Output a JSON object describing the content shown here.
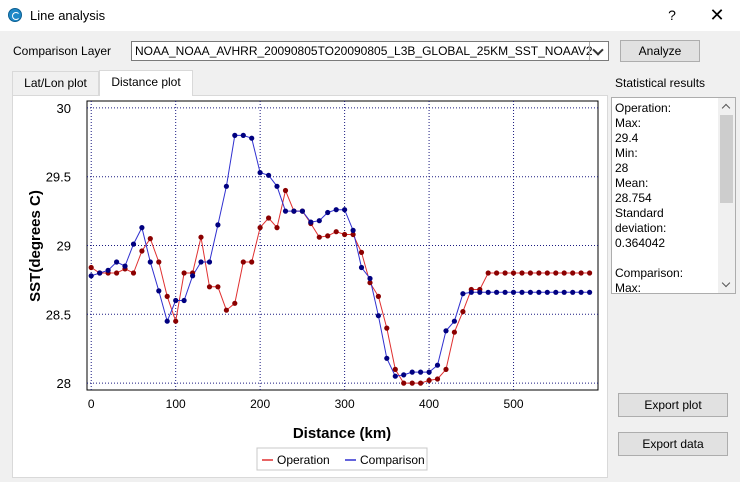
{
  "window": {
    "title": "Line analysis",
    "help": "?",
    "close": "✕"
  },
  "comparison": {
    "label": "Comparison Layer",
    "value": "NOAA_NOAA_AVHRR_20090805TO20090805_L3B_GLOBAL_25KM_SST_NOAAV2",
    "analyze_label": "Analyze"
  },
  "tabs": [
    {
      "label": "Lat/Lon plot"
    },
    {
      "label": "Distance plot"
    }
  ],
  "stats": {
    "label": "Statistical results",
    "text": "Operation:\nMax:\n29.4\nMin:\n28\nMean:\n28.754\nStandard\ndeviation:\n0.364042\n\nComparison:\nMax:"
  },
  "buttons": {
    "export_plot": "Export plot",
    "export_data": "Export data"
  },
  "colors": {
    "operation": "#8b0000",
    "comparison": "#000080",
    "operation_line": "#e03030",
    "comparison_line": "#3030d0"
  },
  "chart_data": {
    "type": "line",
    "title": "",
    "xlabel": "Distance (km)",
    "ylabel": "SST(degrees C)",
    "xlim": [
      -5,
      600
    ],
    "ylim": [
      27.95,
      30.05
    ],
    "xticks": [
      0,
      100,
      200,
      300,
      400,
      500
    ],
    "yticks": [
      28,
      28.5,
      29,
      29.5,
      30
    ],
    "ytick_labels": [
      "28",
      "28.5",
      "29",
      "29.5",
      "30"
    ],
    "grid": true,
    "legend": "bottom-center",
    "series": [
      {
        "name": "Operation",
        "x": [
          0,
          10,
          20,
          30,
          40,
          50,
          60,
          70,
          80,
          90,
          100,
          110,
          120,
          130,
          140,
          150,
          160,
          170,
          180,
          190,
          200,
          210,
          220,
          230,
          240,
          250,
          260,
          270,
          280,
          290,
          300,
          310,
          320,
          330,
          340,
          350,
          360,
          370,
          380,
          390,
          400,
          410,
          420,
          430,
          440,
          450,
          460,
          470,
          480,
          490,
          500,
          510,
          520,
          530,
          540,
          550,
          560,
          570,
          580,
          590
        ],
        "y": [
          28.84,
          28.8,
          28.8,
          28.8,
          28.83,
          28.8,
          28.96,
          29.05,
          28.88,
          28.63,
          28.45,
          28.8,
          28.8,
          29.06,
          28.7,
          28.7,
          28.53,
          28.58,
          28.88,
          28.88,
          29.13,
          29.2,
          29.13,
          29.4,
          29.25,
          29.25,
          29.16,
          29.06,
          29.07,
          29.1,
          29.08,
          29.08,
          28.95,
          28.73,
          28.63,
          28.4,
          28.1,
          28.0,
          28.0,
          28.0,
          28.02,
          28.03,
          28.1,
          28.37,
          28.52,
          28.68,
          28.68,
          28.8,
          28.8,
          28.8,
          28.8,
          28.8,
          28.8,
          28.8,
          28.8,
          28.8,
          28.8,
          28.8,
          28.8,
          28.8
        ]
      },
      {
        "name": "Comparison",
        "x": [
          0,
          10,
          20,
          30,
          40,
          50,
          60,
          70,
          80,
          90,
          100,
          110,
          120,
          130,
          140,
          150,
          160,
          170,
          180,
          190,
          200,
          210,
          220,
          230,
          240,
          250,
          260,
          270,
          280,
          290,
          300,
          310,
          320,
          330,
          340,
          350,
          360,
          370,
          380,
          390,
          400,
          410,
          420,
          430,
          440,
          450,
          460,
          470,
          480,
          490,
          500,
          510,
          520,
          530,
          540,
          550,
          560,
          570,
          580,
          590
        ],
        "y": [
          28.78,
          28.8,
          28.82,
          28.88,
          28.85,
          29.01,
          29.13,
          28.88,
          28.67,
          28.45,
          28.6,
          28.6,
          28.78,
          28.88,
          28.88,
          29.15,
          29.43,
          29.8,
          29.8,
          29.78,
          29.53,
          29.51,
          29.43,
          29.25,
          29.25,
          29.25,
          29.17,
          29.18,
          29.24,
          29.26,
          29.26,
          29.11,
          28.84,
          28.76,
          28.49,
          28.18,
          28.05,
          28.06,
          28.08,
          28.08,
          28.08,
          28.13,
          28.38,
          28.45,
          28.65,
          28.66,
          28.66,
          28.66,
          28.66,
          28.66,
          28.66,
          28.66,
          28.66,
          28.66,
          28.66,
          28.66,
          28.66,
          28.66,
          28.66,
          28.66
        ]
      }
    ]
  }
}
